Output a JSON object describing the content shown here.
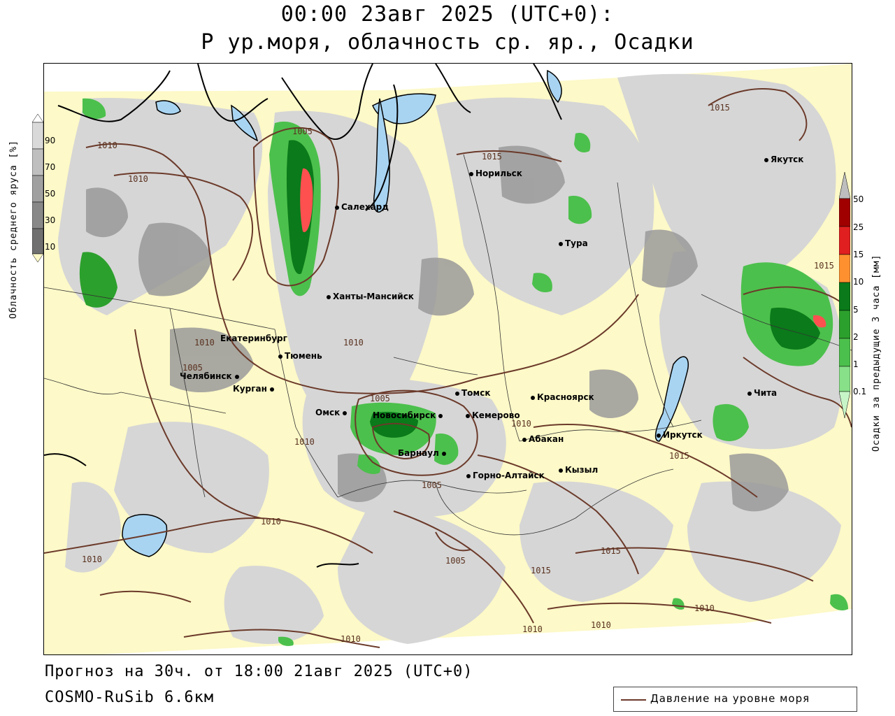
{
  "header": {
    "title_line1": "00:00 23авг 2025 (UTC+0):",
    "title_line2": "Р ур.моря, облачность ср. яр., Осадки"
  },
  "footer": {
    "forecast": "Прогноз на 30ч. от 18:00 21авг 2025 (UTC+0)",
    "model": "COSMO-RuSib 6.6км"
  },
  "legend_cloud": {
    "title": "Облачность среднего яруса [%]",
    "ticks": [
      "90",
      "70",
      "50",
      "30",
      "10"
    ],
    "colors": [
      "#ffffff",
      "#d9d9d9",
      "#bfbfbf",
      "#a0a0a0",
      "#888888",
      "#707070",
      "#fdf9c8"
    ]
  },
  "legend_precip": {
    "title": "Осадки за предыдущие 3 часа [мм]",
    "ticks": [
      "50",
      "25",
      "15",
      "10",
      "5",
      "2",
      "1",
      "0.1"
    ],
    "colors": [
      "#bebebe",
      "#a00000",
      "#e02020",
      "#ff5050",
      "#ff9030",
      "#0a7a1a",
      "#2ca02c",
      "#4cc04c",
      "#88e088",
      "#c8f5c8"
    ]
  },
  "legend_line": {
    "label": "Давление на уровне моря",
    "color": "#6b3a2a"
  },
  "cities": [
    {
      "name": "Норильск"
    },
    {
      "name": "Якутск"
    },
    {
      "name": "Салехард"
    },
    {
      "name": "Тура"
    },
    {
      "name": "Ханты-Мансийск"
    },
    {
      "name": "Екатеринбург"
    },
    {
      "name": "Тюмень"
    },
    {
      "name": "Челябинск"
    },
    {
      "name": "Курган"
    },
    {
      "name": "Томск"
    },
    {
      "name": "Красноярск"
    },
    {
      "name": "Омск"
    },
    {
      "name": "Новосибирск"
    },
    {
      "name": "Кемерово"
    },
    {
      "name": "Абакан"
    },
    {
      "name": "Барнаул"
    },
    {
      "name": "Горно-Алтайск"
    },
    {
      "name": "Кызыл"
    },
    {
      "name": "Иркутск"
    },
    {
      "name": "Чита"
    }
  ],
  "isobar_labels": [
    "1015",
    "1005",
    "1010",
    "1015",
    "1015",
    "1010",
    "1010",
    "1010",
    "1005",
    "1010",
    "1010",
    "1010",
    "1015",
    "1005",
    "1005",
    "1015",
    "1015",
    "1010",
    "1005",
    "1010",
    "1010",
    "1010",
    "1010"
  ]
}
